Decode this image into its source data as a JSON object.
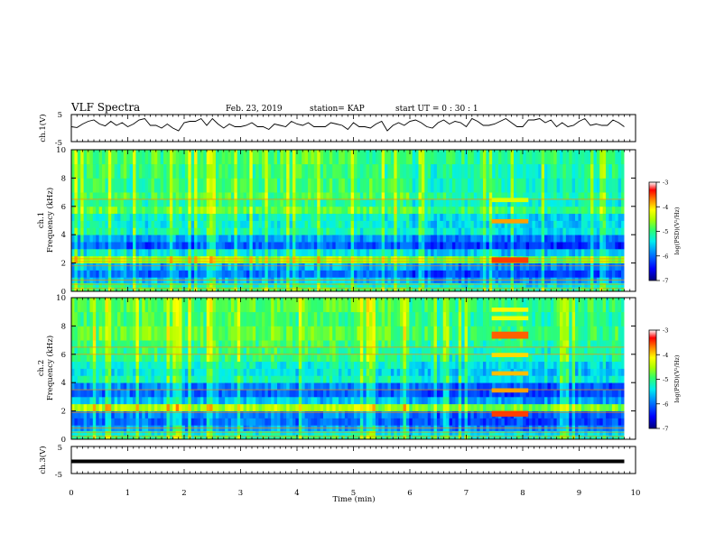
{
  "header": {
    "title": "VLF Spectra",
    "date": "Feb. 23, 2019",
    "station": "station= KAP",
    "start": "start  UT  =   0  : 30 : 1"
  },
  "colors": {
    "colormap": [
      "#00007a",
      "#0000ff",
      "#0088ff",
      "#00eeee",
      "#33ff66",
      "#aaff00",
      "#ffff00",
      "#ff8800",
      "#ff0000",
      "#ffffff"
    ],
    "trace": "#000000",
    "axes": "#000000"
  },
  "chart_data": [
    {
      "type": "line",
      "name": "ch1-waveform",
      "ylabel": "ch.1(V)",
      "ylim": [
        -5,
        5
      ],
      "yticks": [
        "5",
        "-5"
      ],
      "x": [
        0,
        0.1,
        0.2,
        0.3,
        0.4,
        0.5,
        0.6,
        0.7,
        0.8,
        0.9,
        1.0,
        1.1,
        1.2,
        1.3,
        1.4,
        1.5,
        1.6,
        1.7,
        1.8,
        1.9,
        2.0,
        2.1,
        2.2,
        2.3,
        2.4,
        2.5,
        2.6,
        2.7,
        2.8,
        2.9,
        3.0,
        3.1,
        3.2,
        3.3,
        3.4,
        3.5,
        3.6,
        3.7,
        3.8,
        3.9,
        4.0,
        4.1,
        4.2,
        4.3,
        4.4,
        4.5,
        4.6,
        4.7,
        4.8,
        4.9,
        5.0,
        5.1,
        5.2,
        5.3,
        5.4,
        5.5,
        5.6,
        5.7,
        5.8,
        5.9,
        6.0,
        6.1,
        6.2,
        6.3,
        6.4,
        6.5,
        6.6,
        6.7,
        6.8,
        6.9,
        7.0,
        7.1,
        7.2,
        7.3,
        7.4,
        7.5,
        7.6,
        7.7,
        7.8,
        7.9,
        8.0,
        8.1,
        8.2,
        8.3,
        8.4,
        8.5,
        8.6,
        8.7,
        8.8,
        8.9,
        9.0,
        9.1,
        9.2,
        9.3,
        9.4,
        9.5,
        9.6,
        9.7,
        9.8
      ],
      "y": [
        0.5,
        0.2,
        1.5,
        2.5,
        3,
        1.5,
        0.8,
        2.5,
        1,
        2,
        0.5,
        1.5,
        3,
        3.5,
        1,
        1,
        0,
        1.5,
        0,
        -1,
        2,
        2.5,
        2.5,
        3.5,
        1,
        3.5,
        1.5,
        0,
        1.5,
        0.5,
        0.5,
        1,
        2,
        0.5,
        0.5,
        -0.5,
        1.5,
        1,
        0.5,
        2.5,
        1.5,
        1,
        2,
        0.5,
        0.5,
        0.5,
        2,
        1.5,
        1,
        -0.5,
        2,
        0.5,
        0.5,
        0,
        1.5,
        2.5,
        -1,
        1,
        2,
        1,
        2.5,
        3,
        2,
        0.5,
        0,
        2,
        3,
        1.5,
        2.5,
        2,
        0.5,
        3.5,
        2.5,
        1,
        1,
        1.5,
        2.5,
        3.5,
        2,
        0.5,
        0.5,
        3,
        3,
        3.5,
        2,
        3,
        0.5,
        2,
        0.5,
        1,
        2.5,
        3.5,
        1,
        1.5,
        1,
        1,
        3,
        2,
        0.5
      ],
      "xlim": [
        0,
        10
      ]
    },
    {
      "type": "heatmap",
      "name": "ch1-spectrogram",
      "ylabel": "ch.1",
      "ylabel2": "Frequency (kHz)",
      "xlim": [
        0,
        10
      ],
      "ylim": [
        0,
        10
      ],
      "yticks": [
        0,
        2,
        4,
        6,
        8,
        10
      ],
      "colorbar_label": "log(PSD)(V²/Hz)",
      "colorbar_range": [
        -7,
        -3
      ],
      "colorbar_ticks": [
        "-3",
        "-4",
        "-5",
        "-6",
        "-7"
      ],
      "band_freqs_khz": [
        0,
        0.3,
        0.6,
        1.0,
        1.5,
        2.0,
        2.5,
        3.0,
        3.5,
        4.0,
        4.5,
        5.0,
        5.5,
        6.0,
        6.5,
        7.0,
        8.0,
        9.0,
        10.0
      ],
      "band_levels_log_psd": [
        -4.9,
        -5.2,
        -5.6,
        -6.0,
        -5.7,
        -4.6,
        -5.4,
        -6.1,
        -5.8,
        -5.2,
        -5.3,
        -5.3,
        -4.8,
        -5.1,
        -4.9,
        -5.0,
        -5.0,
        -4.9
      ],
      "hlines_khz": [
        0.2,
        0.5,
        0.8,
        1.8,
        2.1,
        2.3,
        6.5
      ],
      "events": [
        {
          "t_start": 7.45,
          "t_end": 8.1,
          "f_lo": 2.0,
          "f_hi": 2.4,
          "level": -3.5
        },
        {
          "t_start": 7.45,
          "t_end": 8.1,
          "f_lo": 4.8,
          "f_hi": 5.1,
          "level": -3.8
        },
        {
          "t_start": 7.45,
          "t_end": 8.1,
          "f_lo": 6.3,
          "f_hi": 6.6,
          "level": -4.3
        }
      ],
      "shift_time_min": 6.0
    },
    {
      "type": "heatmap",
      "name": "ch2-spectrogram",
      "ylabel": "ch.2",
      "ylabel2": "Frequency (kHz)",
      "xlim": [
        0,
        10
      ],
      "ylim": [
        0,
        10
      ],
      "yticks": [
        0,
        2,
        4,
        6,
        8,
        10
      ],
      "colorbar_label": "log(PSD)(V²/Hz)",
      "colorbar_range": [
        -7,
        -3
      ],
      "colorbar_ticks": [
        "-3",
        "-4",
        "-5",
        "-6",
        "-7"
      ],
      "band_freqs_khz": [
        0,
        0.3,
        0.6,
        1.0,
        1.5,
        2.0,
        2.5,
        3.0,
        3.5,
        4.0,
        4.5,
        5.0,
        5.5,
        6.0,
        6.5,
        7.0,
        8.0,
        9.0,
        10.0
      ],
      "band_levels_log_psd": [
        -5.0,
        -5.3,
        -5.7,
        -6.0,
        -5.9,
        -4.5,
        -5.6,
        -6.0,
        -5.9,
        -5.2,
        -5.4,
        -5.3,
        -5.0,
        -5.0,
        -4.9,
        -4.8,
        -4.9,
        -4.8
      ],
      "hlines_khz": [
        0.2,
        0.5,
        0.8,
        1.9,
        3.5,
        6.0,
        6.5
      ],
      "events": [
        {
          "t_start": 7.45,
          "t_end": 8.1,
          "f_lo": 1.6,
          "f_hi": 2.0,
          "level": -3.5
        },
        {
          "t_start": 7.45,
          "t_end": 8.1,
          "f_lo": 3.3,
          "f_hi": 3.6,
          "level": -3.8
        },
        {
          "t_start": 7.45,
          "t_end": 8.1,
          "f_lo": 4.5,
          "f_hi": 4.8,
          "level": -3.9
        },
        {
          "t_start": 7.45,
          "t_end": 8.1,
          "f_lo": 5.8,
          "f_hi": 6.1,
          "level": -4.0
        },
        {
          "t_start": 7.45,
          "t_end": 8.1,
          "f_lo": 7.1,
          "f_hi": 7.6,
          "level": -3.6
        },
        {
          "t_start": 7.45,
          "t_end": 8.1,
          "f_lo": 8.4,
          "f_hi": 8.7,
          "level": -4.2
        },
        {
          "t_start": 7.45,
          "t_end": 8.1,
          "f_lo": 9.0,
          "f_hi": 9.3,
          "level": -4.1
        }
      ],
      "shift_time_min": 6.0
    },
    {
      "type": "line",
      "name": "ch3-waveform",
      "ylabel": "ch.3(V)",
      "ylim": [
        -5,
        5
      ],
      "yticks": [
        "5",
        "-5"
      ],
      "x": [
        0,
        9.8
      ],
      "y": [
        -0.5,
        -0.5
      ],
      "xlim": [
        0,
        10
      ],
      "xlabel": "Time (min)",
      "xticks": [
        "0",
        "1",
        "2",
        "3",
        "4",
        "5",
        "6",
        "7",
        "8",
        "9",
        "10"
      ]
    }
  ]
}
